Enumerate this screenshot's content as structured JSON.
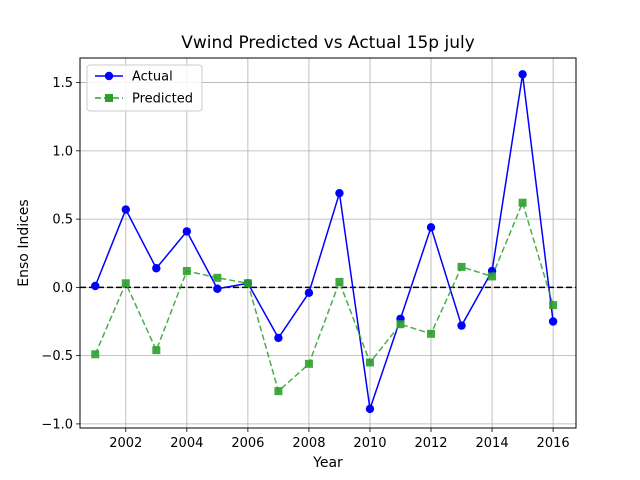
{
  "chart_data": {
    "type": "line",
    "title": "Vwind Predicted vs Actual 15p july",
    "xlabel": "Year",
    "ylabel": "Enso Indices",
    "xlim": [
      2000.5,
      2016.75
    ],
    "ylim": [
      -1.03,
      1.68
    ],
    "xticks": [
      2002,
      2004,
      2006,
      2008,
      2010,
      2012,
      2014,
      2016
    ],
    "yticks": [
      -1.0,
      -0.5,
      0.0,
      0.5,
      1.0,
      1.5
    ],
    "ytick_labels": [
      "−1.0",
      "−0.5",
      "0.0",
      "0.5",
      "1.0",
      "1.5"
    ],
    "grid": true,
    "legend_position": "top-left",
    "reference_line": {
      "y": 0,
      "style": "dashed",
      "color": "#000000"
    },
    "x": [
      2001,
      2002,
      2003,
      2004,
      2005,
      2006,
      2007,
      2008,
      2009,
      2010,
      2011,
      2012,
      2013,
      2014,
      2015,
      2016
    ],
    "series": [
      {
        "name": "Actual",
        "color": "#0000ff",
        "marker": "circle",
        "line": "solid",
        "values": [
          0.01,
          0.57,
          0.14,
          0.41,
          -0.01,
          0.03,
          -0.37,
          -0.04,
          0.69,
          -0.89,
          -0.23,
          0.44,
          -0.28,
          0.12,
          1.56,
          -0.25
        ]
      },
      {
        "name": "Predicted",
        "color": "#2ca02c",
        "marker": "square",
        "line": "dashed",
        "values": [
          -0.49,
          0.03,
          -0.46,
          0.12,
          0.07,
          0.03,
          -0.76,
          -0.56,
          0.04,
          -0.55,
          -0.27,
          -0.34,
          0.15,
          0.08,
          0.62,
          -0.13
        ]
      }
    ]
  }
}
